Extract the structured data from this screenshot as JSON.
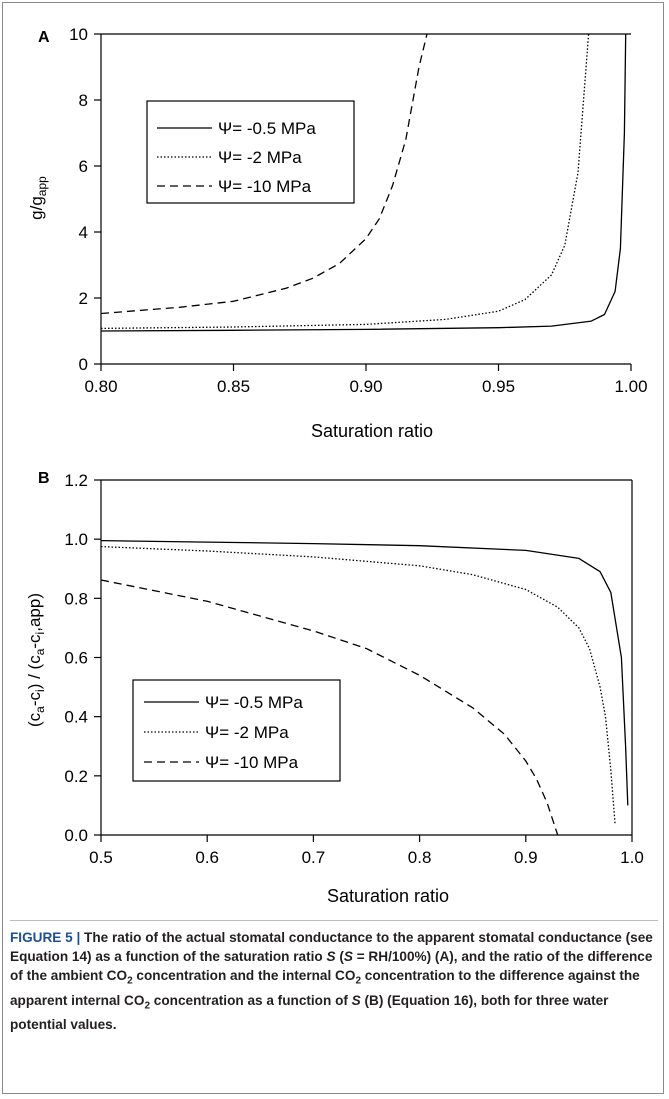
{
  "colors": {
    "axis": "#000000",
    "series": "#000000",
    "caption_label": "#1b4f9c",
    "frame": "#8a8a8a"
  },
  "chart_data": [
    {
      "panel_label": "A",
      "type": "line",
      "xlabel": "Saturation ratio",
      "ylabel": {
        "main": "g/g",
        "sub": "app"
      },
      "xlim": [
        0.8,
        1.0
      ],
      "ylim": [
        0,
        10
      ],
      "xticks": [
        "0.80",
        "0.85",
        "0.90",
        "0.95",
        "1.00"
      ],
      "yticks": [
        "0",
        "2",
        "4",
        "6",
        "8",
        "10"
      ],
      "legend_position": "top-left",
      "series": [
        {
          "name": "Ψ= -0.5 MPa",
          "dash": "solid",
          "x": [
            0.8,
            0.85,
            0.9,
            0.95,
            0.97,
            0.985,
            0.99,
            0.994,
            0.996,
            0.9975,
            0.998
          ],
          "y": [
            1.0,
            1.02,
            1.05,
            1.1,
            1.15,
            1.3,
            1.5,
            2.2,
            3.5,
            7.0,
            10.0
          ]
        },
        {
          "name": "Ψ= -2 MPa",
          "dash": "dotted",
          "x": [
            0.8,
            0.85,
            0.9,
            0.93,
            0.95,
            0.96,
            0.97,
            0.975,
            0.98,
            0.984
          ],
          "y": [
            1.08,
            1.12,
            1.2,
            1.35,
            1.6,
            1.95,
            2.7,
            3.6,
            5.8,
            10.0
          ]
        },
        {
          "name": "Ψ= -10 MPa",
          "dash": "dashed",
          "x": [
            0.8,
            0.83,
            0.85,
            0.87,
            0.88,
            0.89,
            0.9,
            0.905,
            0.91,
            0.915,
            0.92,
            0.923
          ],
          "y": [
            1.53,
            1.72,
            1.9,
            2.3,
            2.6,
            3.05,
            3.8,
            4.4,
            5.4,
            6.8,
            9.0,
            10.0
          ]
        }
      ]
    },
    {
      "panel_label": "B",
      "type": "line",
      "xlabel": "Saturation ratio",
      "ylabel": {
        "main": "(c",
        "s1": "a",
        "m2": "-c",
        "s2": "i",
        "m3": ") / (c",
        "s3": "a",
        "m4": "-c",
        "s4": "i",
        "m5": ",app)"
      },
      "xlim": [
        0.5,
        1.0
      ],
      "ylim": [
        0.0,
        1.2
      ],
      "xticks": [
        "0.5",
        "0.6",
        "0.7",
        "0.8",
        "0.9",
        "1.0"
      ],
      "yticks": [
        "0.0",
        "0.2",
        "0.4",
        "0.6",
        "0.8",
        "1.0",
        "1.2"
      ],
      "legend_position": "bottom-left",
      "series": [
        {
          "name": "Ψ= -0.5 MPa",
          "dash": "solid",
          "x": [
            0.5,
            0.6,
            0.7,
            0.8,
            0.9,
            0.95,
            0.97,
            0.98,
            0.99,
            0.994,
            0.996
          ],
          "y": [
            0.995,
            0.99,
            0.985,
            0.978,
            0.962,
            0.935,
            0.89,
            0.82,
            0.6,
            0.3,
            0.1
          ]
        },
        {
          "name": "Ψ= -2 MPa",
          "dash": "dotted",
          "x": [
            0.5,
            0.6,
            0.7,
            0.8,
            0.85,
            0.9,
            0.93,
            0.95,
            0.96,
            0.97,
            0.975,
            0.98,
            0.984
          ],
          "y": [
            0.975,
            0.96,
            0.94,
            0.91,
            0.88,
            0.83,
            0.77,
            0.7,
            0.63,
            0.5,
            0.4,
            0.22,
            0.04
          ]
        },
        {
          "name": "Ψ= -10 MPa",
          "dash": "dashed",
          "x": [
            0.5,
            0.6,
            0.7,
            0.75,
            0.8,
            0.85,
            0.88,
            0.9,
            0.91,
            0.92,
            0.93
          ],
          "y": [
            0.862,
            0.79,
            0.69,
            0.63,
            0.54,
            0.43,
            0.34,
            0.25,
            0.19,
            0.11,
            0.0
          ]
        }
      ]
    }
  ],
  "caption": {
    "label": "FIGURE 5 |",
    "p1": " The ratio of the actual stomatal conductance to the apparent stomatal conductance (see Equation 14) as a function of the saturation ratio ",
    "s1": "S",
    "p2": " (",
    "s2": "S",
    "p3": " = RH/100%) (A), and the ratio of the difference of the ambient CO",
    "sub1": "2",
    "p4": " concentration and the internal CO",
    "sub2": "2",
    "p5": " concentration to the difference against the apparent internal CO",
    "sub3": "2",
    "p6": " concentration as a function of ",
    "s3": "S",
    "p7": " (B) (Equation 16), both for three water potential values."
  }
}
